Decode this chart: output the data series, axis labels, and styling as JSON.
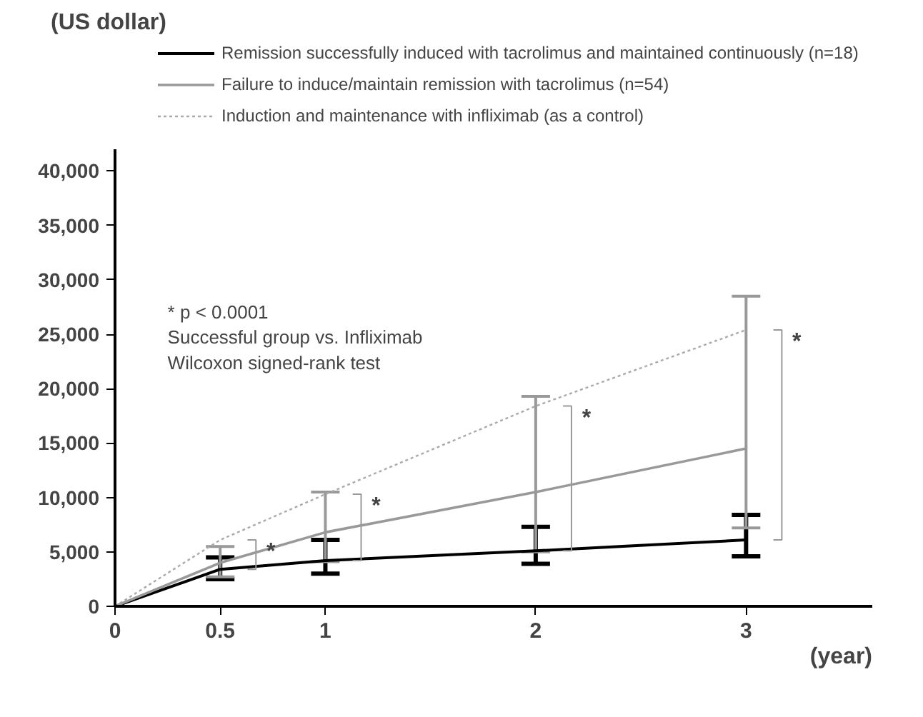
{
  "chart_data": {
    "type": "line",
    "xlabel": "(year)",
    "ylabel": "(US dollar)",
    "x": [
      0,
      0.5,
      1,
      2,
      3
    ],
    "xlim": [
      0,
      3.6
    ],
    "xticks": [
      0,
      0.5,
      1,
      2,
      3
    ],
    "ylim": [
      0,
      42000
    ],
    "yticks": [
      {
        "value": 0,
        "label": "0"
      },
      {
        "value": 5000,
        "label": "5,000"
      },
      {
        "value": 10000,
        "label": "10,000"
      },
      {
        "value": 15000,
        "label": "15,000"
      },
      {
        "value": 20000,
        "label": "20,000"
      },
      {
        "value": 25000,
        "label": "25,000"
      },
      {
        "value": 30000,
        "label": "30,000"
      },
      {
        "value": 35000,
        "label": "35,000"
      },
      {
        "value": 40000,
        "label": "40,000"
      }
    ],
    "series": [
      {
        "name": "Remission successfully induced with tacrolimus and maintained continuously (n=18)",
        "color": "#000000",
        "line_style": "solid",
        "values": [
          0,
          3400,
          4200,
          5100,
          6100
        ],
        "errors": [
          null,
          [
            2500,
            4500
          ],
          [
            3000,
            6100
          ],
          [
            3900,
            7300
          ],
          [
            4600,
            8400
          ]
        ]
      },
      {
        "name": "Failure to induce/maintain remission with tacrolimus (n=54)",
        "color": "#999999",
        "line_style": "solid",
        "values": [
          0,
          4000,
          6800,
          10500,
          14500
        ],
        "errors": [
          null,
          [
            2700,
            5500
          ],
          [
            4100,
            10500
          ],
          [
            5000,
            19300
          ],
          [
            7200,
            28500
          ]
        ]
      },
      {
        "name": "Induction and maintenance with infliximab (as a control)",
        "color": "#aaaaaa",
        "line_style": "dotted",
        "values": [
          0,
          6100,
          10300,
          18400,
          25400
        ]
      }
    ],
    "annotations": [
      "* p < 0.0001",
      "Successful group vs. Infliximab",
      "Wilcoxon signed-rank test",
      {
        "text": "*",
        "x": 0.5,
        "y": 6100
      },
      {
        "text": "*",
        "x": 1,
        "y": 10300
      },
      {
        "text": "*",
        "x": 2,
        "y": 18400
      },
      {
        "text": "*",
        "x": 3,
        "y": 25400
      }
    ],
    "grid": false,
    "legend": "top",
    "marker": "none"
  }
}
